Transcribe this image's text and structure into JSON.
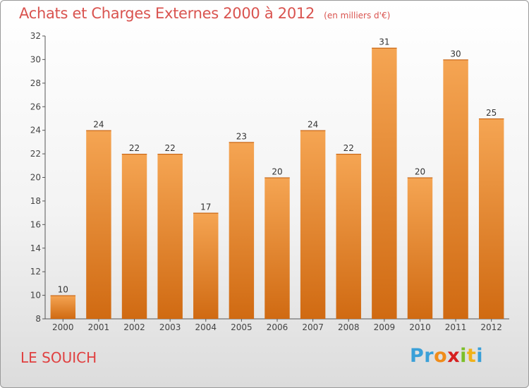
{
  "header": {
    "title": "Achats et Charges Externes 2000 à 2012",
    "unit": "(en milliers d'€)"
  },
  "footer": {
    "commune": "LE SOUICH",
    "logo_letters": [
      "P",
      "r",
      "o",
      "x",
      "i",
      "t",
      "i"
    ]
  },
  "colors": {
    "bar_top": "#f5a553",
    "bar_bottom": "#d06a12",
    "title": "#d9534f",
    "logo": [
      "#3aa0d8",
      "#3aa0d8",
      "#f08c1a",
      "#d62020",
      "#7cbf2a",
      "#f0b21a",
      "#3aa0d8"
    ]
  },
  "chart_data": {
    "type": "bar",
    "categories": [
      "2000",
      "2001",
      "2002",
      "2003",
      "2004",
      "2005",
      "2006",
      "2007",
      "2008",
      "2009",
      "2010",
      "2011",
      "2012"
    ],
    "values": [
      10,
      24,
      22,
      22,
      17,
      23,
      20,
      24,
      22,
      31,
      20,
      30,
      25
    ],
    "ylim": [
      8,
      32
    ],
    "yticks": [
      8,
      10,
      12,
      14,
      16,
      18,
      20,
      22,
      24,
      26,
      28,
      30,
      32
    ],
    "grid": false,
    "data_labels": true
  }
}
